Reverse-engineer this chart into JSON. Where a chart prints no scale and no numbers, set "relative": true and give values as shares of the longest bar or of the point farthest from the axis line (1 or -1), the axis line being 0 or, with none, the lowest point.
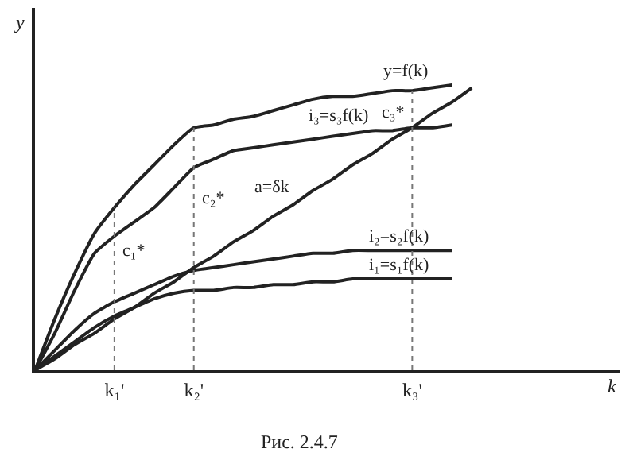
{
  "chart_data": {
    "type": "line",
    "relative": true,
    "ylabel": "y",
    "categories": [
      null,
      null,
      null,
      null,
      "k₁'",
      null,
      null,
      null,
      "k₂'",
      null,
      null,
      null,
      null,
      null,
      null,
      null,
      null,
      null,
      null,
      "k₃'",
      null,
      null,
      null
    ],
    "tick_labels": "x",
    "grid": false,
    "legend": false,
    "marker": "none",
    "line_style": "solid",
    "series": [
      {
        "name": "y=f(k)",
        "color": "#222222",
        "values": [
          0,
          0.18,
          0.34,
          0.48,
          0.57,
          0.65,
          0.72,
          0.79,
          0.85,
          0.86,
          0.88,
          0.89,
          0.91,
          0.93,
          0.95,
          0.96,
          0.96,
          0.97,
          0.98,
          0.98,
          0.99,
          1.0,
          null
        ]
      },
      {
        "name": "i₃=s₃f(k)",
        "color": "#222222",
        "values": [
          0,
          0.13,
          0.28,
          0.41,
          0.47,
          0.52,
          0.57,
          0.64,
          0.71,
          0.74,
          0.77,
          0.78,
          0.79,
          0.8,
          0.81,
          0.82,
          0.83,
          0.84,
          0.84,
          0.85,
          0.85,
          0.86,
          null
        ]
      },
      {
        "name": "a=δk",
        "color": "#222222",
        "values": [
          0,
          0.04,
          0.09,
          0.13,
          0.18,
          0.22,
          0.27,
          0.31,
          0.36,
          0.4,
          0.45,
          0.49,
          0.54,
          0.58,
          0.63,
          0.67,
          0.72,
          0.76,
          0.81,
          0.85,
          0.9,
          0.94,
          0.99
        ]
      },
      {
        "name": "i₂=s₂f(k)",
        "color": "#222222",
        "values": [
          0,
          0.07,
          0.14,
          0.2,
          0.24,
          0.27,
          0.3,
          0.33,
          0.35,
          0.36,
          0.37,
          0.38,
          0.39,
          0.4,
          0.41,
          0.41,
          0.42,
          0.42,
          0.42,
          0.42,
          0.42,
          0.42,
          null
        ]
      },
      {
        "name": "i₁=s₁f(k)",
        "color": "#222222",
        "values": [
          0,
          0.05,
          0.1,
          0.15,
          0.19,
          0.22,
          0.25,
          0.27,
          0.28,
          0.28,
          0.29,
          0.29,
          0.3,
          0.3,
          0.31,
          0.31,
          0.32,
          0.32,
          0.32,
          0.32,
          0.32,
          0.32,
          null
        ]
      }
    ],
    "ref_lines": [
      {
        "axis": "x",
        "value": "k₁'",
        "color": "#777777",
        "line_style": "dotted"
      },
      {
        "axis": "x",
        "value": "k₂'",
        "color": "#777777",
        "line_style": "dotted"
      },
      {
        "axis": "x",
        "value": "k₃'",
        "color": "#777777",
        "line_style": "dotted"
      }
    ],
    "annotations": [
      "c₁*",
      "c₂*",
      "c₃*",
      "k",
      "Рис. 2.4.7"
    ]
  }
}
